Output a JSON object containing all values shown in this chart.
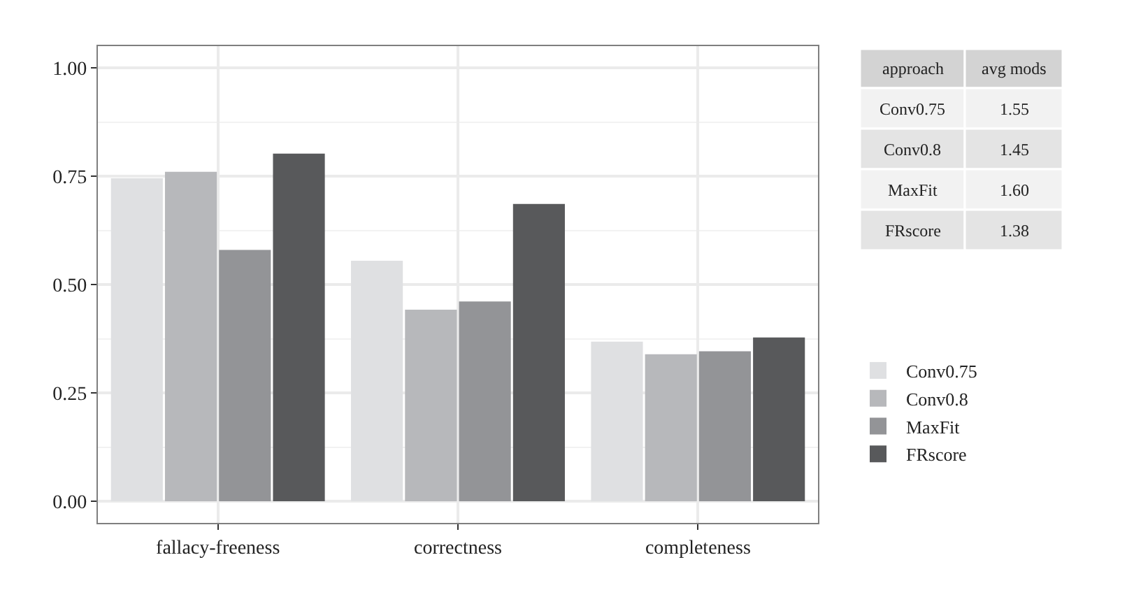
{
  "chart_data": [
    {
      "type": "bar",
      "categories": [
        "fallacy-freeness",
        "correctness",
        "completeness"
      ],
      "series": [
        {
          "name": "Conv0.75",
          "color": "#dfe0e2",
          "values": [
            0.745,
            0.555,
            0.368
          ]
        },
        {
          "name": "Conv0.8",
          "color": "#b7b8bb",
          "values": [
            0.76,
            0.442,
            0.339
          ]
        },
        {
          "name": "MaxFit",
          "color": "#939497",
          "values": [
            0.58,
            0.461,
            0.346
          ]
        },
        {
          "name": "FRscore",
          "color": "#58595b",
          "values": [
            0.802,
            0.686,
            0.378
          ]
        }
      ],
      "ylim": [
        -0.05,
        1.05
      ],
      "yticks": [
        {
          "value": 0,
          "label": "0.00"
        },
        {
          "value": 0.25,
          "label": "0.25"
        },
        {
          "value": 0.5,
          "label": "0.50"
        },
        {
          "value": 0.75,
          "label": "0.75"
        },
        {
          "value": 1,
          "label": "1.00"
        }
      ],
      "grid": true,
      "legend": "right"
    },
    {
      "type": "other",
      "annotations": [
        "approach",
        "avg mods",
        "Conv0.75",
        "1.55",
        "Conv0.8",
        "1.45",
        "MaxFit",
        "1.60",
        "FRscore",
        "1.38"
      ]
    }
  ]
}
